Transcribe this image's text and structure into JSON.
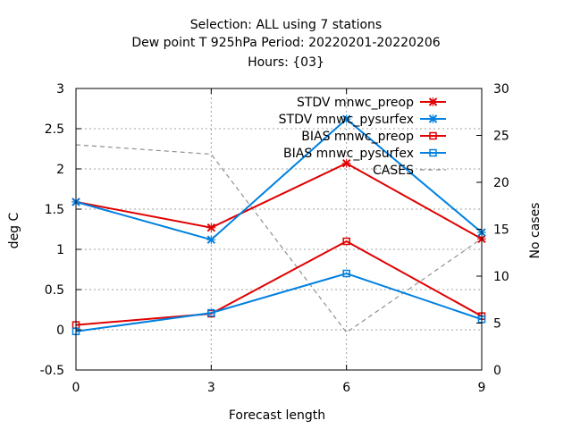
{
  "title_lines": [
    "Selection: ALL using     7 stations",
    "Dew point T 925hPa   Period: 20220201-20220206",
    "Hours: {03}"
  ],
  "chart_data": {
    "type": "line",
    "title": "Selection: ALL using     7 stations / Dew point T 925hPa   Period: 20220201-20220206 / Hours: {03}",
    "xlabel": "Forecast length",
    "ylabel": "deg C",
    "y2label": "No cases",
    "x": [
      0,
      3,
      6,
      9
    ],
    "x_ticks": [
      "0",
      "3",
      "6",
      "9"
    ],
    "xlim": [
      0,
      9
    ],
    "ylim": [
      -0.5,
      3
    ],
    "y_ticks": [
      "-0.5",
      "0",
      "0.5",
      "1",
      "1.5",
      "2",
      "2.5",
      "3"
    ],
    "y2lim": [
      0,
      30
    ],
    "y2_ticks": [
      "0",
      "5",
      "10",
      "15",
      "20",
      "25",
      "30"
    ],
    "grid": true,
    "legend_position": "top-right",
    "series": [
      {
        "name": "STDV mnwc_preop",
        "axis": "y1",
        "marker": "x",
        "color": "#e00000",
        "values": [
          1.59,
          1.27,
          2.07,
          1.13
        ]
      },
      {
        "name": "STDV mnwc_pysurfex",
        "axis": "y1",
        "marker": "x",
        "color": "#0080e0",
        "values": [
          1.59,
          1.12,
          2.62,
          1.21
        ]
      },
      {
        "name": "BIAS mnwc_preop",
        "axis": "y1",
        "marker": "square",
        "color": "#e00000",
        "values": [
          0.06,
          0.2,
          1.1,
          0.17
        ]
      },
      {
        "name": "BIAS mnwc_pysurfex",
        "axis": "y1",
        "marker": "square",
        "color": "#0080e0",
        "values": [
          -0.02,
          0.21,
          0.7,
          0.13
        ]
      },
      {
        "name": "CASES",
        "axis": "y2",
        "marker": "none",
        "color": "#909090",
        "dashed": true,
        "values": [
          24,
          23,
          4,
          14
        ]
      }
    ]
  }
}
